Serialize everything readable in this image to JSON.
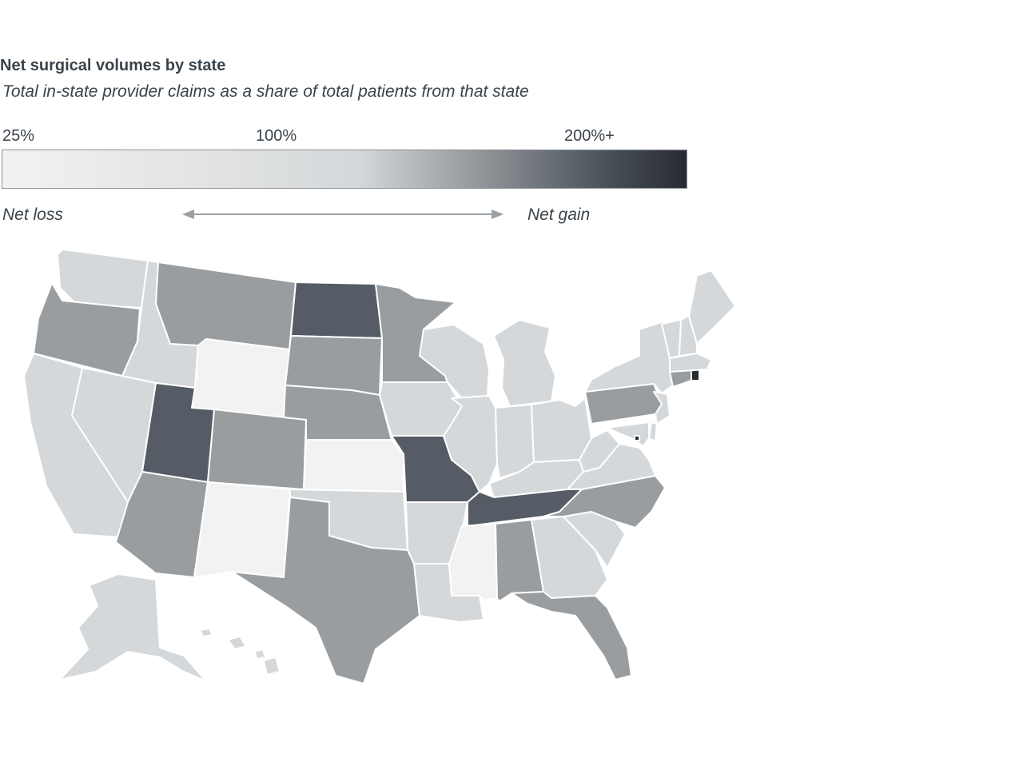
{
  "title": "Net surgical volumes by state",
  "subtitle": "Total in-state provider claims as a share of total patients from that state",
  "legend": {
    "ticks": [
      "25%",
      "100%",
      "200%+"
    ],
    "net_loss": "Net loss",
    "net_gain": "Net gain",
    "colors": [
      "#f2f2f2",
      "#d5d8da",
      "#999da0",
      "#565c65",
      "#262b30"
    ]
  },
  "map_data": {
    "type": "choropleth",
    "states": [
      {
        "name": "Washington",
        "level": "light"
      },
      {
        "name": "Oregon",
        "level": "mid"
      },
      {
        "name": "California",
        "level": "light"
      },
      {
        "name": "Nevada",
        "level": "light"
      },
      {
        "name": "Idaho",
        "level": "light"
      },
      {
        "name": "Montana",
        "level": "mid"
      },
      {
        "name": "Wyoming",
        "level": "lightest"
      },
      {
        "name": "Utah",
        "level": "dark"
      },
      {
        "name": "Arizona",
        "level": "mid"
      },
      {
        "name": "Colorado",
        "level": "mid"
      },
      {
        "name": "New Mexico",
        "level": "lightest"
      },
      {
        "name": "North Dakota",
        "level": "dark"
      },
      {
        "name": "South Dakota",
        "level": "mid"
      },
      {
        "name": "Nebraska",
        "level": "mid"
      },
      {
        "name": "Kansas",
        "level": "lightest"
      },
      {
        "name": "Oklahoma",
        "level": "light"
      },
      {
        "name": "Texas",
        "level": "mid"
      },
      {
        "name": "Minnesota",
        "level": "mid"
      },
      {
        "name": "Iowa",
        "level": "light"
      },
      {
        "name": "Missouri",
        "level": "dark"
      },
      {
        "name": "Arkansas",
        "level": "light"
      },
      {
        "name": "Louisiana",
        "level": "light"
      },
      {
        "name": "Wisconsin",
        "level": "light"
      },
      {
        "name": "Illinois",
        "level": "light"
      },
      {
        "name": "Michigan",
        "level": "light"
      },
      {
        "name": "Indiana",
        "level": "light"
      },
      {
        "name": "Ohio",
        "level": "light"
      },
      {
        "name": "Kentucky",
        "level": "light"
      },
      {
        "name": "Tennessee",
        "level": "dark"
      },
      {
        "name": "Mississippi",
        "level": "lightest"
      },
      {
        "name": "Alabama",
        "level": "mid"
      },
      {
        "name": "Georgia",
        "level": "light"
      },
      {
        "name": "Florida",
        "level": "mid"
      },
      {
        "name": "South Carolina",
        "level": "light"
      },
      {
        "name": "North Carolina",
        "level": "mid"
      },
      {
        "name": "Virginia",
        "level": "light"
      },
      {
        "name": "West Virginia",
        "level": "light"
      },
      {
        "name": "Pennsylvania",
        "level": "mid"
      },
      {
        "name": "New York",
        "level": "light"
      },
      {
        "name": "New Jersey",
        "level": "light"
      },
      {
        "name": "Delaware",
        "level": "light"
      },
      {
        "name": "Maryland",
        "level": "light"
      },
      {
        "name": "District of Columbia",
        "level": "darkest"
      },
      {
        "name": "Connecticut",
        "level": "mid"
      },
      {
        "name": "Rhode Island",
        "level": "darkest"
      },
      {
        "name": "Massachusetts",
        "level": "light"
      },
      {
        "name": "Vermont",
        "level": "light"
      },
      {
        "name": "New Hampshire",
        "level": "light"
      },
      {
        "name": "Maine",
        "level": "light"
      },
      {
        "name": "Alaska",
        "level": "light"
      },
      {
        "name": "Hawaii",
        "level": "light"
      }
    ]
  }
}
